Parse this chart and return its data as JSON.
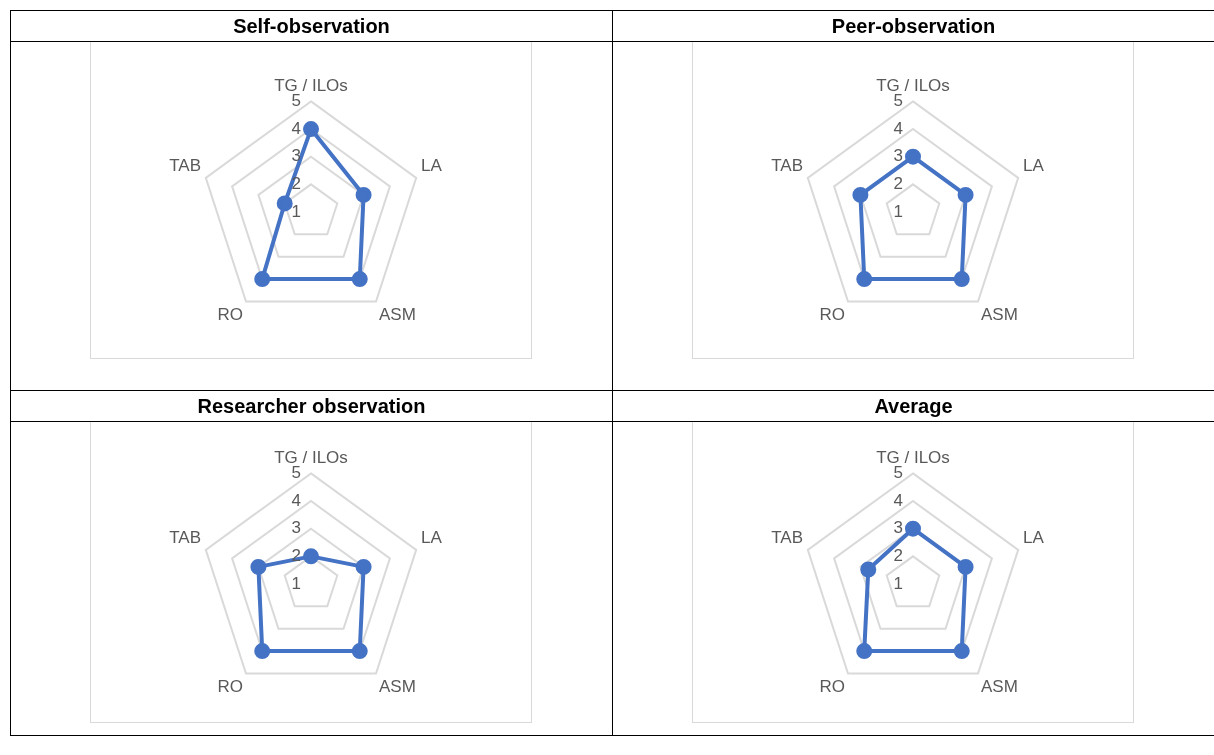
{
  "chart_data": [
    {
      "type": "radar",
      "title": "Self-observation",
      "categories": [
        "TG / ILOs",
        "LA",
        "ASM",
        "RO",
        "TAB"
      ],
      "series": [
        {
          "color": "#4472c4",
          "values": [
            4,
            3,
            4,
            4,
            2
          ]
        }
      ],
      "ylim": [
        1,
        5
      ],
      "yticks": [
        1,
        2,
        3,
        4,
        5
      ],
      "grid": true,
      "marker": "circle"
    },
    {
      "type": "radar",
      "title": "Peer-observation",
      "categories": [
        "TG / ILOs",
        "LA",
        "ASM",
        "RO",
        "TAB"
      ],
      "series": [
        {
          "color": "#4472c4",
          "values": [
            3,
            3,
            4,
            4,
            3
          ]
        }
      ],
      "ylim": [
        1,
        5
      ],
      "yticks": [
        1,
        2,
        3,
        4,
        5
      ],
      "grid": true,
      "marker": "circle"
    },
    {
      "type": "radar",
      "title": "Researcher observation",
      "categories": [
        "TG / ILOs",
        "LA",
        "ASM",
        "RO",
        "TAB"
      ],
      "series": [
        {
          "color": "#4472c4",
          "values": [
            2,
            3,
            4,
            4,
            3
          ]
        }
      ],
      "ylim": [
        1,
        5
      ],
      "yticks": [
        1,
        2,
        3,
        4,
        5
      ],
      "grid": true,
      "marker": "circle"
    },
    {
      "type": "radar",
      "title": "Average",
      "categories": [
        "TG / ILOs",
        "LA",
        "ASM",
        "RO",
        "TAB"
      ],
      "series": [
        {
          "color": "#4472c4",
          "values": [
            3,
            3,
            4,
            4,
            2.7
          ]
        }
      ],
      "ylim": [
        1,
        5
      ],
      "yticks": [
        1,
        2,
        3,
        4,
        5
      ],
      "grid": true,
      "marker": "circle"
    }
  ]
}
